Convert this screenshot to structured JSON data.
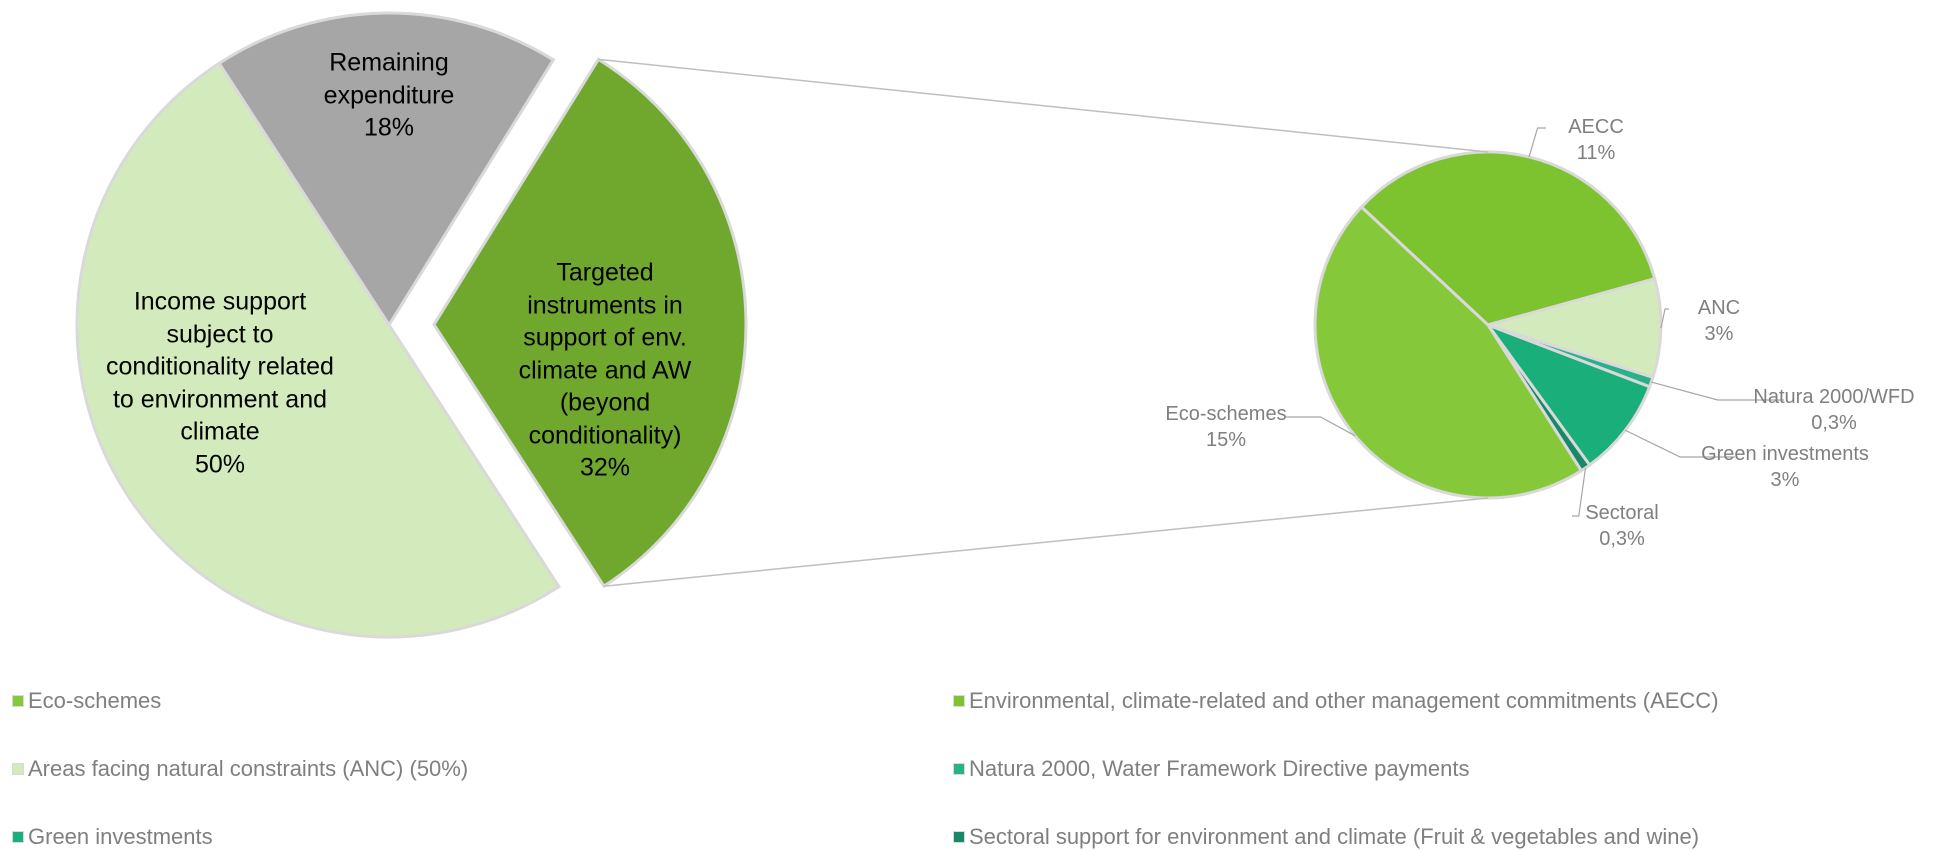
{
  "chart_data": [
    {
      "type": "pie",
      "categories": [
        "Remaining expenditure",
        "Targeted instruments in support of env. climate and AW (beyond conditionality)",
        "Income support subject to conditionality related to environment and climate"
      ],
      "values": [
        18,
        32,
        50
      ],
      "value_labels": [
        "18%",
        "32%",
        "50%"
      ],
      "colors": [
        "#a6a6a6",
        "#70a82e",
        "#d3ebbc"
      ],
      "explode": [
        false,
        true,
        false
      ]
    },
    {
      "type": "pie",
      "categories": [
        "AECC",
        "ANC",
        "Natura 2000/WFD",
        "Green investments",
        "Sectoral",
        "Eco-schemes"
      ],
      "values": [
        11,
        3,
        0.3,
        3,
        0.3,
        15
      ],
      "value_labels": [
        "11%",
        "3%",
        "0,3%",
        "3%",
        "0,3%",
        "15%"
      ],
      "colors": [
        "#7dc22f",
        "#d3ebbc",
        "#2bb18a",
        "#1aae7a",
        "#17896a",
        "#85c93a"
      ],
      "legend": [
        "Environmental, climate-related and other management commitments (AECC)",
        "Areas facing natural constraints (ANC) (50%)",
        "Natura 2000, Water Framework Directive payments",
        "Green investments",
        "Sectoral support for environment and climate (Fruit & vegetables and wine)",
        "Eco-schemes"
      ]
    }
  ]
}
